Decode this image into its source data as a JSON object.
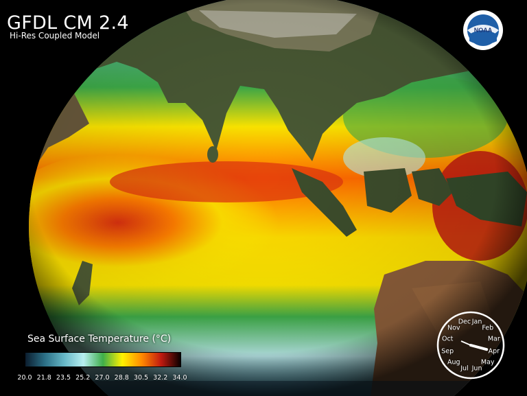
{
  "header": {
    "title": "GFDL CM 2.4",
    "subtitle": "Hi-Res Coupled Model"
  },
  "logo": {
    "text": "NOAA",
    "icon": "noaa-logo-icon"
  },
  "colorbar": {
    "title": "Sea Surface Temperature (°C)",
    "ticks": [
      "20.0",
      "21.8",
      "23.5",
      "25.2",
      "27.0",
      "28.8",
      "30.5",
      "32.2",
      "34.0"
    ],
    "colors": [
      "#0b1d2e",
      "#2b6f86",
      "#66b7c6",
      "#b7eef0",
      "#3fae4a",
      "#fff200",
      "#ff8a00",
      "#c01a10",
      "#0a0000"
    ]
  },
  "clock": {
    "months": [
      "Jan",
      "Feb",
      "Mar",
      "Apr",
      "May",
      "Jun",
      "Jul",
      "Aug",
      "Sep",
      "Oct",
      "Nov",
      "Dec"
    ],
    "current_month": "Apr"
  }
}
